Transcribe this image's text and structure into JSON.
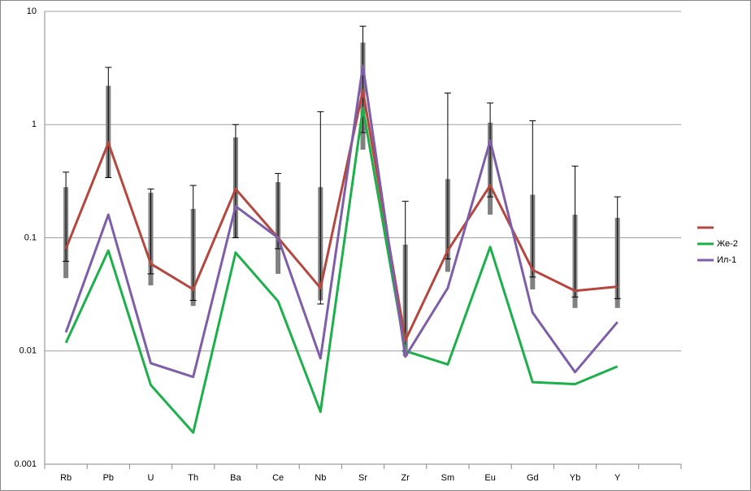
{
  "chart_data": {
    "type": "line",
    "log_y": true,
    "grid": true,
    "legend": "right",
    "categories": [
      "Rb",
      "Pb",
      "U",
      "Th",
      "Ba",
      "Ce",
      "Nb",
      "Sr",
      "Zr",
      "Sm",
      "Eu",
      "Gd",
      "Yb",
      "Y",
      null
    ],
    "ylim": [
      0.001,
      10
    ],
    "yticks": [
      0.001,
      0.01,
      0.1,
      1,
      10
    ],
    "series": [
      {
        "color": "#b5473f",
        "values": [
          0.08,
          0.69,
          0.059,
          0.035,
          0.27,
          0.1,
          0.036,
          2.0,
          0.0124,
          0.077,
          0.29,
          0.052,
          0.034,
          0.037,
          null
        ]
      },
      {
        "name": "Же-2",
        "color": "#1db04a",
        "values": [
          0.0118,
          0.077,
          0.005,
          0.0019,
          0.074,
          0.0275,
          0.0029,
          1.4,
          0.01,
          0.0076,
          0.083,
          0.0053,
          0.0051,
          0.0073,
          null
        ]
      },
      {
        "name": "Ил-1",
        "color": "#7e5ea8",
        "values": [
          0.0146,
          0.16,
          0.0078,
          0.0059,
          0.19,
          0.1,
          0.0086,
          3.3,
          0.0089,
          0.036,
          0.72,
          0.0218,
          0.0065,
          0.018,
          null
        ]
      }
    ],
    "ranges": {
      "color": "#808080",
      "whisker_color": "#000000",
      "box_low": [
        0.044,
        0.34,
        0.038,
        0.025,
        0.1,
        0.048,
        0.028,
        0.6,
        0.009,
        0.05,
        0.16,
        0.035,
        0.024,
        0.024,
        null
      ],
      "box_high": [
        0.28,
        2.2,
        0.25,
        0.18,
        0.77,
        0.31,
        0.28,
        5.3,
        0.087,
        0.33,
        1.04,
        0.24,
        0.16,
        0.15,
        null
      ],
      "whisker_low": [
        0.062,
        0.34,
        0.048,
        0.028,
        0.1,
        0.08,
        0.026,
        0.85,
        0.01,
        0.065,
        0.23,
        0.045,
        0.03,
        0.029,
        null
      ],
      "whisker_high": [
        0.38,
        3.2,
        0.27,
        0.29,
        1.0,
        0.37,
        1.3,
        7.4,
        0.21,
        1.9,
        1.55,
        1.08,
        0.43,
        0.23,
        null
      ]
    }
  }
}
